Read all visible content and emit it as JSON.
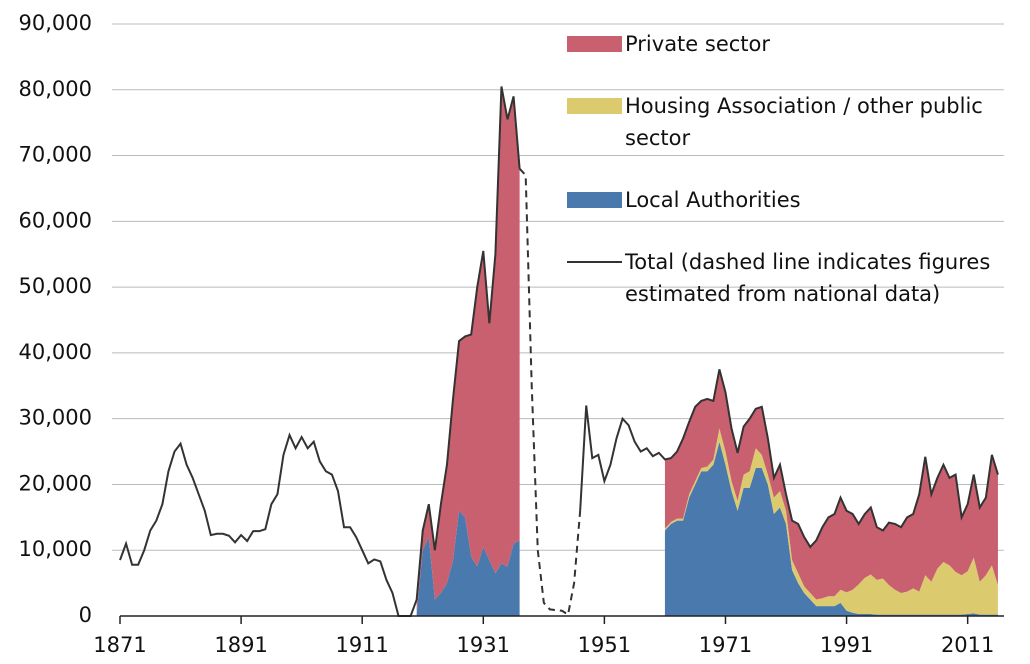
{
  "chart_data": {
    "type": "stacked_area_line",
    "series": [
      {
        "name": "Private sector",
        "color": "#c9606f",
        "kind": "area",
        "x": [
          1920,
          1921,
          1922,
          1923,
          1924,
          1925,
          1926,
          1927,
          1928,
          1929,
          1930,
          1931,
          1932,
          1933,
          1934,
          1935,
          1936,
          1937,
          1961,
          1962,
          1963,
          1964,
          1965,
          1966,
          1967,
          1968,
          1969,
          1970,
          1971,
          1972,
          1973,
          1974,
          1975,
          1976,
          1977,
          1978,
          1979,
          1980,
          1981,
          1982,
          1983,
          1984,
          1985,
          1986,
          1987,
          1988,
          1989,
          1990,
          1991,
          1992,
          1993,
          1994,
          1995,
          1996,
          1997,
          1998,
          1999,
          2000,
          2001,
          2002,
          2003,
          2004,
          2005,
          2006,
          2007,
          2008,
          2009,
          2010,
          2011,
          2012,
          2013,
          2014,
          2015,
          2016
        ],
        "values": [
          2000,
          3000,
          5000,
          7500,
          13500,
          18000,
          24500,
          25800,
          27500,
          33800,
          42500,
          45000,
          36000,
          48500,
          72500,
          68000,
          68000,
          56500,
          10500,
          9700,
          10200,
          12200,
          11000,
          11300,
          10200,
          10300,
          8900,
          9000,
          9000,
          8000,
          7300,
          7300,
          8000,
          6000,
          7300,
          5500,
          3000,
          4000,
          2500,
          6000,
          7500,
          7500,
          7000,
          9000,
          10800,
          12000,
          12500,
          14000,
          12400,
          11500,
          9200,
          9700,
          10200,
          8000,
          7300,
          9500,
          10000,
          10000,
          11300,
          11300,
          14800,
          18000,
          13300,
          13800,
          14800,
          13300,
          14800,
          8800,
          10200,
          12600,
          11300,
          11800,
          16800,
          16800
        ]
      },
      {
        "name": "Housing Association / other public sector",
        "color": "#dccb6e",
        "kind": "area",
        "x": [
          1961,
          1962,
          1963,
          1964,
          1965,
          1966,
          1967,
          1968,
          1969,
          1970,
          1971,
          1972,
          1973,
          1974,
          1975,
          1976,
          1977,
          1978,
          1979,
          1980,
          1981,
          1982,
          1983,
          1984,
          1985,
          1986,
          1987,
          1988,
          1989,
          1990,
          1991,
          1992,
          1993,
          1994,
          1995,
          1996,
          1997,
          1998,
          1999,
          2000,
          2001,
          2002,
          2003,
          2004,
          2005,
          2006,
          2007,
          2008,
          2009,
          2010,
          2011,
          2012,
          2013,
          2014,
          2015,
          2016
        ],
        "values": [
          300,
          300,
          300,
          300,
          500,
          500,
          500,
          700,
          800,
          2000,
          2000,
          1500,
          1500,
          2000,
          2500,
          3000,
          2000,
          1500,
          2500,
          2500,
          2000,
          1500,
          1500,
          1000,
          1000,
          1000,
          1200,
          1500,
          1500,
          2000,
          2800,
          3500,
          4500,
          5500,
          6000,
          5300,
          5500,
          4500,
          3800,
          3300,
          3500,
          4000,
          3500,
          6000,
          5000,
          7000,
          8000,
          7500,
          6500,
          6000,
          6500,
          8500,
          5000,
          6000,
          7500,
          4500
        ]
      },
      {
        "name": "Local Authorities",
        "color": "#4a7aad",
        "kind": "area",
        "x": [
          1920,
          1921,
          1922,
          1923,
          1924,
          1925,
          1926,
          1927,
          1928,
          1929,
          1930,
          1931,
          1932,
          1933,
          1934,
          1935,
          1936,
          1937,
          1961,
          1962,
          1963,
          1964,
          1965,
          1966,
          1967,
          1968,
          1969,
          1970,
          1971,
          1972,
          1973,
          1974,
          1975,
          1976,
          1977,
          1978,
          1979,
          1980,
          1981,
          1982,
          1983,
          1984,
          1985,
          1986,
          1987,
          1988,
          1989,
          1990,
          1991,
          1992,
          1993,
          1994,
          1995,
          1996,
          1997,
          1998,
          1999,
          2000,
          2001,
          2002,
          2003,
          2004,
          2005,
          2006,
          2007,
          2008,
          2009,
          2010,
          2011,
          2012,
          2013,
          2014,
          2015,
          2016
        ],
        "values": [
          500,
          10000,
          12000,
          2500,
          3500,
          5000,
          8500,
          16000,
          15000,
          9000,
          7500,
          10500,
          8500,
          6500,
          8000,
          7500,
          11000,
          11500,
          13000,
          14000,
          14500,
          14500,
          18000,
          20000,
          22000,
          22000,
          23000,
          26500,
          23000,
          19000,
          16000,
          19500,
          19500,
          22500,
          22500,
          20000,
          15500,
          16500,
          14000,
          7000,
          5000,
          3500,
          2500,
          1500,
          1500,
          1500,
          1500,
          2000,
          800,
          500,
          300,
          300,
          300,
          200,
          200,
          200,
          200,
          200,
          200,
          200,
          200,
          200,
          200,
          200,
          200,
          200,
          200,
          200,
          300,
          400,
          200,
          200,
          200,
          200
        ]
      },
      {
        "name": "Total (dashed line indicates figures estimated from national data)",
        "color": "#333333",
        "kind": "line",
        "dashed_x": [
          1937,
          1947
        ],
        "x": [
          1871,
          1872,
          1873,
          1874,
          1875,
          1876,
          1877,
          1878,
          1879,
          1880,
          1881,
          1882,
          1883,
          1884,
          1885,
          1886,
          1887,
          1888,
          1889,
          1890,
          1891,
          1892,
          1893,
          1894,
          1895,
          1896,
          1897,
          1898,
          1899,
          1900,
          1901,
          1902,
          1903,
          1904,
          1905,
          1906,
          1907,
          1908,
          1909,
          1910,
          1911,
          1912,
          1913,
          1914,
          1915,
          1916,
          1917,
          1918,
          1919,
          1920,
          1921,
          1922,
          1923,
          1924,
          1925,
          1926,
          1927,
          1928,
          1929,
          1930,
          1931,
          1932,
          1933,
          1934,
          1935,
          1936,
          1937,
          1938,
          1939,
          1940,
          1941,
          1942,
          1943,
          1944,
          1945,
          1946,
          1947,
          1948,
          1949,
          1950,
          1951,
          1952,
          1953,
          1954,
          1955,
          1956,
          1957,
          1958,
          1959,
          1960,
          1961,
          1962,
          1963,
          1964,
          1965,
          1966,
          1967,
          1968,
          1969,
          1970,
          1971,
          1972,
          1973,
          1974,
          1975,
          1976,
          1977,
          1978,
          1979,
          1980,
          1981,
          1982,
          1983,
          1984,
          1985,
          1986,
          1987,
          1988,
          1989,
          1990,
          1991,
          1992,
          1993,
          1994,
          1995,
          1996,
          1997,
          1998,
          1999,
          2000,
          2001,
          2002,
          2003,
          2004,
          2005,
          2006,
          2007,
          2008,
          2009,
          2010,
          2011,
          2012,
          2013,
          2014,
          2015,
          2016
        ],
        "values": [
          8500,
          11000,
          7800,
          7800,
          10000,
          13000,
          14500,
          17000,
          22000,
          25000,
          26200,
          23000,
          21000,
          18500,
          16000,
          12300,
          12500,
          12500,
          12200,
          11200,
          12300,
          11400,
          12900,
          12900,
          13200,
          17000,
          18500,
          24500,
          27500,
          25500,
          27200,
          25500,
          26500,
          23500,
          22000,
          21500,
          19000,
          13500,
          13500,
          12000,
          10000,
          8000,
          8600,
          8300,
          5500,
          3500,
          0,
          0,
          0,
          2500,
          13000,
          17000,
          10000,
          17000,
          23000,
          33000,
          41800,
          42500,
          42800,
          50000,
          55500,
          44500,
          55000,
          80500,
          75500,
          79000,
          68000,
          67000,
          35000,
          10000,
          2000,
          1000,
          900,
          800,
          200,
          5000,
          16000,
          32000,
          24000,
          24500,
          20500,
          23000,
          27000,
          30000,
          29000,
          26500,
          25000,
          25500,
          24300,
          24800,
          23800,
          24000,
          25000,
          27000,
          29500,
          31800,
          32700,
          33000,
          32700,
          37500,
          34000,
          28500,
          24800,
          28800,
          30000,
          31500,
          31800,
          27000,
          21000,
          23000,
          18500,
          14500,
          14000,
          12000,
          10500,
          11500,
          13500,
          15000,
          15500,
          18000,
          16000,
          15500,
          14000,
          15500,
          16500,
          13500,
          13000,
          14200,
          14000,
          13500,
          15000,
          15500,
          18500,
          24200,
          18500,
          21000,
          23000,
          21000,
          21500,
          15000,
          17000,
          21500,
          16500,
          18000,
          24500,
          21500
        ]
      }
    ],
    "xlim": [
      1871,
      2017
    ],
    "xticks": [
      1871,
      1891,
      1911,
      1931,
      1951,
      1971,
      1991,
      2011
    ],
    "ylim": [
      0,
      90000
    ],
    "yticks": [
      0,
      {
        "value": 10000,
        "label": "10,000"
      },
      {
        "value": 20000,
        "label": "20,000"
      },
      {
        "value": 30000,
        "label": "30,000"
      },
      {
        "value": 40000,
        "label": "40,000"
      },
      {
        "value": 50000,
        "label": "50,000"
      },
      {
        "value": 60000,
        "label": "60,000"
      },
      {
        "value": 70000,
        "label": "70,000"
      },
      {
        "value": 80000,
        "label": "80,000"
      },
      {
        "value": 90000,
        "label": "90,000"
      }
    ],
    "grid": true,
    "legend": "upper right"
  }
}
